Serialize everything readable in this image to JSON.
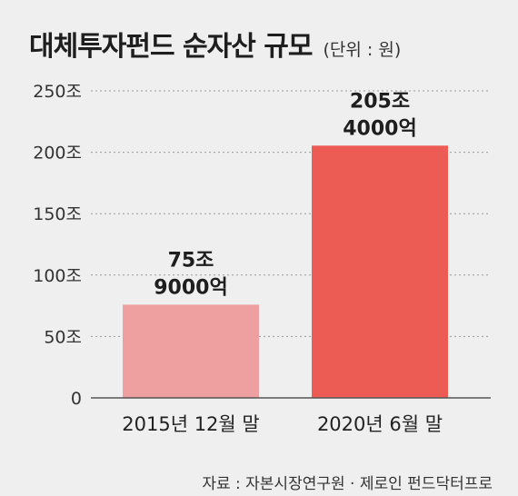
{
  "header": {
    "title": "대체투자펀드 순자산 규모",
    "unit": "(단위 : 원)"
  },
  "chart_data": {
    "type": "bar",
    "title": "대체투자펀드 순자산 규모",
    "unit": "(단위 : 원)",
    "categories": [
      "2015년 12월 말",
      "2020년 6월 말"
    ],
    "values": [
      75.9,
      205.4
    ],
    "data_labels": [
      [
        "75조",
        "9000억"
      ],
      [
        "205조",
        "4000억"
      ]
    ],
    "colors": [
      "#ee9fa0",
      "#ed5b55"
    ],
    "ylim": [
      0,
      250
    ],
    "yticks": [
      0,
      50,
      100,
      150,
      200,
      250
    ],
    "ytick_labels": [
      "0",
      "50조",
      "100조",
      "150조",
      "200조",
      "250조"
    ],
    "grid": true,
    "xlabel": "",
    "ylabel": ""
  },
  "footer": {
    "source": "자료 : 자본시장연구원 · 제로인 펀드닥터프로"
  }
}
